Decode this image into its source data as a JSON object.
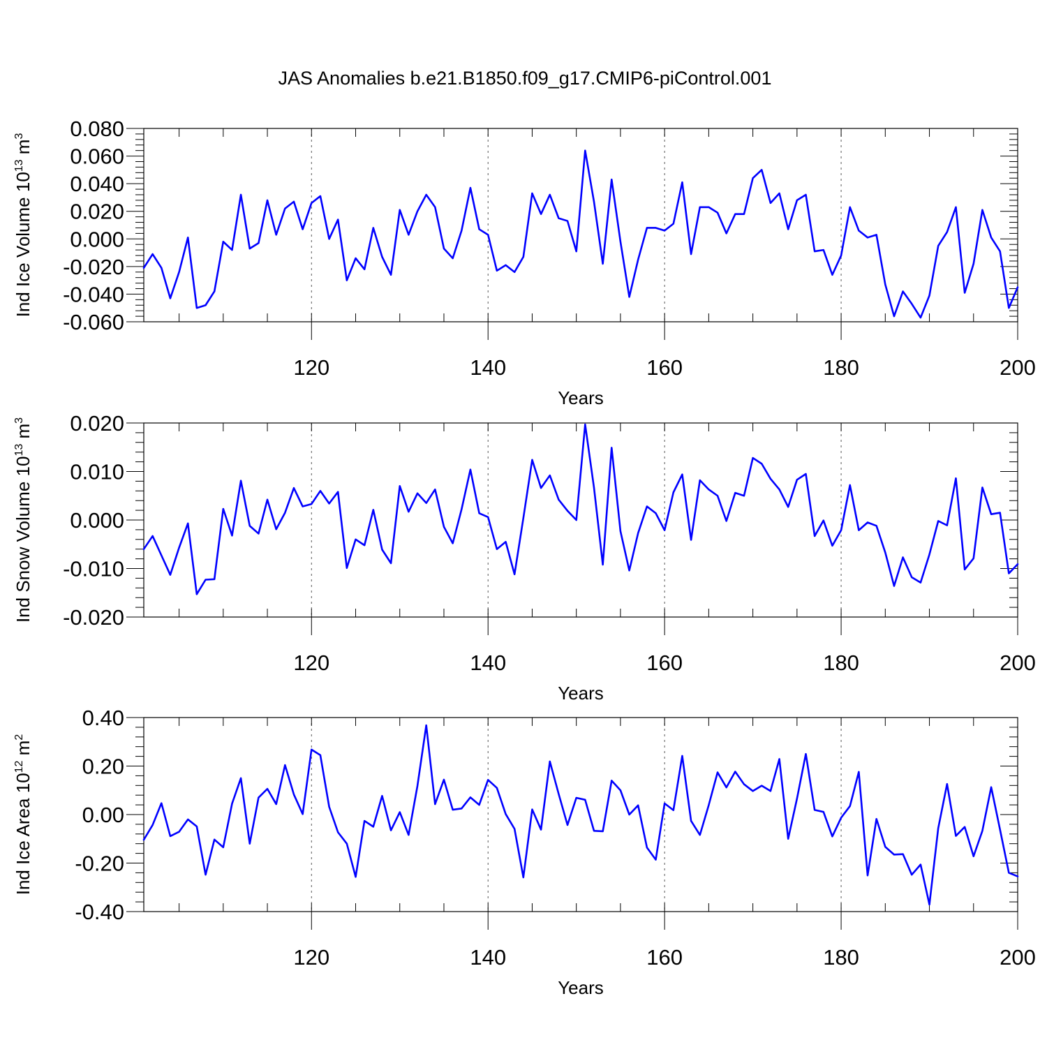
{
  "figure": {
    "title": "JAS Anomalies b.e21.B1850.f09_g17.CMIP6-piControl.001"
  },
  "chart_data": [
    {
      "type": "line",
      "ylabel_main": "Ind Ice Volume 10",
      "ylabel_exp": "13",
      "ylabel_unit": " m",
      "ylabel_unit_exp": "3",
      "xlabel": "Years",
      "xlim": [
        101,
        200
      ],
      "ylim": [
        -0.06,
        0.08
      ],
      "xticks": [
        120,
        140,
        160,
        180,
        200
      ],
      "xtick_labels": [
        "120",
        "140",
        "160",
        "180",
        "200"
      ],
      "yticks": [
        -0.06,
        -0.04,
        -0.02,
        0.0,
        0.02,
        0.04,
        0.06,
        0.08
      ],
      "ytick_labels": [
        "-0.060",
        "-0.040",
        "-0.020",
        "0.000",
        "0.020",
        "0.040",
        "0.060",
        "0.080"
      ],
      "grid_x": [
        120,
        140,
        160,
        180
      ],
      "line_color": "#0000ff",
      "x_start": 101,
      "values": [
        -0.021,
        -0.011,
        -0.021,
        -0.043,
        -0.024,
        0.001,
        -0.05,
        -0.048,
        -0.038,
        -0.002,
        -0.008,
        0.032,
        -0.007,
        -0.003,
        0.028,
        0.003,
        0.022,
        0.027,
        0.007,
        0.026,
        0.031,
        0.0,
        0.014,
        -0.03,
        -0.014,
        -0.022,
        0.008,
        -0.013,
        -0.026,
        0.021,
        0.003,
        0.02,
        0.032,
        0.023,
        -0.007,
        -0.014,
        0.006,
        0.037,
        0.007,
        0.003,
        -0.023,
        -0.019,
        -0.024,
        -0.013,
        0.033,
        0.018,
        0.032,
        0.015,
        0.013,
        -0.009,
        0.064,
        0.027,
        -0.018,
        0.043,
        -0.002,
        -0.042,
        -0.015,
        0.008,
        0.008,
        0.006,
        0.011,
        0.041,
        -0.011,
        0.023,
        0.023,
        0.019,
        0.004,
        0.018,
        0.018,
        0.044,
        0.05,
        0.026,
        0.033,
        0.007,
        0.028,
        0.032,
        -0.009,
        -0.008,
        -0.026,
        -0.012,
        0.023,
        0.006,
        0.001,
        0.003,
        -0.033,
        -0.056,
        -0.038,
        -0.047,
        -0.057,
        -0.041,
        -0.005,
        0.005,
        0.023,
        -0.039,
        -0.018,
        0.021,
        0.001,
        -0.009,
        -0.05,
        -0.035
      ]
    },
    {
      "type": "line",
      "ylabel_main": "Ind Snow Volume 10",
      "ylabel_exp": "13",
      "ylabel_unit": " m",
      "ylabel_unit_exp": "3",
      "xlabel": "Years",
      "xlim": [
        101,
        200
      ],
      "ylim": [
        -0.02,
        0.02
      ],
      "xticks": [
        120,
        140,
        160,
        180,
        200
      ],
      "xtick_labels": [
        "120",
        "140",
        "160",
        "180",
        "200"
      ],
      "yticks": [
        -0.02,
        -0.01,
        0.0,
        0.01,
        0.02
      ],
      "ytick_labels": [
        "-0.020",
        "-0.010",
        "0.000",
        "0.010",
        "0.020"
      ],
      "grid_x": [
        120,
        140,
        160,
        180
      ],
      "line_color": "#0000ff",
      "x_start": 101,
      "values": [
        -0.006,
        -0.0033,
        -0.0073,
        -0.0113,
        -0.0057,
        -0.0007,
        -0.0153,
        -0.0123,
        -0.0122,
        0.0023,
        -0.0032,
        0.0081,
        -0.0012,
        -0.0028,
        0.0042,
        -0.0019,
        0.0015,
        0.0066,
        0.0028,
        0.0033,
        0.006,
        0.0034,
        0.0058,
        -0.0099,
        -0.004,
        -0.0052,
        0.0021,
        -0.0061,
        -0.0089,
        0.007,
        0.0017,
        0.0055,
        0.0035,
        0.0063,
        -0.0014,
        -0.0048,
        0.0022,
        0.0104,
        0.0014,
        0.0006,
        -0.006,
        -0.0045,
        -0.0112,
        0.0004,
        0.0124,
        0.0066,
        0.0092,
        0.0042,
        0.0019,
        0.0,
        0.0197,
        0.0067,
        -0.0092,
        0.0149,
        -0.0023,
        -0.0104,
        -0.0027,
        0.0028,
        0.0014,
        -0.0021,
        0.0057,
        0.0094,
        -0.0041,
        0.0082,
        0.0063,
        0.005,
        -0.0002,
        0.0056,
        0.005,
        0.0128,
        0.0116,
        0.0085,
        0.0063,
        0.0027,
        0.0083,
        0.0095,
        -0.0033,
        -0.0001,
        -0.0053,
        -0.0021,
        0.0072,
        -0.0021,
        -0.0005,
        -0.0012,
        -0.0067,
        -0.0136,
        -0.0077,
        -0.0118,
        -0.0129,
        -0.0071,
        -0.0002,
        -0.0011,
        0.0086,
        -0.0102,
        -0.0079,
        0.0067,
        0.0012,
        0.0015,
        -0.011,
        -0.0091
      ]
    },
    {
      "type": "line",
      "ylabel_main": "Ind Ice Area 10",
      "ylabel_exp": "12",
      "ylabel_unit": " m",
      "ylabel_unit_exp": "2",
      "xlabel": "Years",
      "xlim": [
        101,
        200
      ],
      "ylim": [
        -0.4,
        0.4
      ],
      "xticks": [
        120,
        140,
        160,
        180,
        200
      ],
      "xtick_labels": [
        "120",
        "140",
        "160",
        "180",
        "200"
      ],
      "yticks": [
        -0.4,
        -0.2,
        0.0,
        0.2,
        0.4
      ],
      "ytick_labels": [
        "-0.40",
        "-0.20",
        "0.00",
        "0.20",
        "0.40"
      ],
      "grid_x": [
        120,
        140,
        160,
        180
      ],
      "line_color": "#0000ff",
      "x_start": 101,
      "values": [
        -0.104,
        -0.043,
        0.047,
        -0.089,
        -0.071,
        -0.02,
        -0.049,
        -0.248,
        -0.103,
        -0.135,
        0.045,
        0.15,
        -0.12,
        0.07,
        0.106,
        0.043,
        0.204,
        0.083,
        0.002,
        0.268,
        0.245,
        0.032,
        -0.073,
        -0.12,
        -0.257,
        -0.026,
        -0.05,
        0.077,
        -0.065,
        0.01,
        -0.084,
        0.118,
        0.368,
        0.043,
        0.144,
        0.02,
        0.025,
        0.071,
        0.04,
        0.143,
        0.11,
        0.002,
        -0.059,
        -0.259,
        0.021,
        -0.062,
        0.219,
        0.085,
        -0.043,
        0.069,
        0.061,
        -0.067,
        -0.069,
        0.14,
        0.1,
        0.0,
        0.038,
        -0.136,
        -0.186,
        0.046,
        0.018,
        0.242,
        -0.026,
        -0.084,
        0.039,
        0.174,
        0.112,
        0.177,
        0.125,
        0.097,
        0.119,
        0.097,
        0.229,
        -0.1,
        0.066,
        0.25,
        0.019,
        0.011,
        -0.09,
        -0.013,
        0.035,
        0.176,
        -0.251,
        -0.018,
        -0.133,
        -0.165,
        -0.163,
        -0.248,
        -0.206,
        -0.371,
        -0.056,
        0.126,
        -0.088,
        -0.051,
        -0.172,
        -0.067,
        0.113,
        -0.062,
        -0.24,
        -0.255
      ]
    }
  ]
}
